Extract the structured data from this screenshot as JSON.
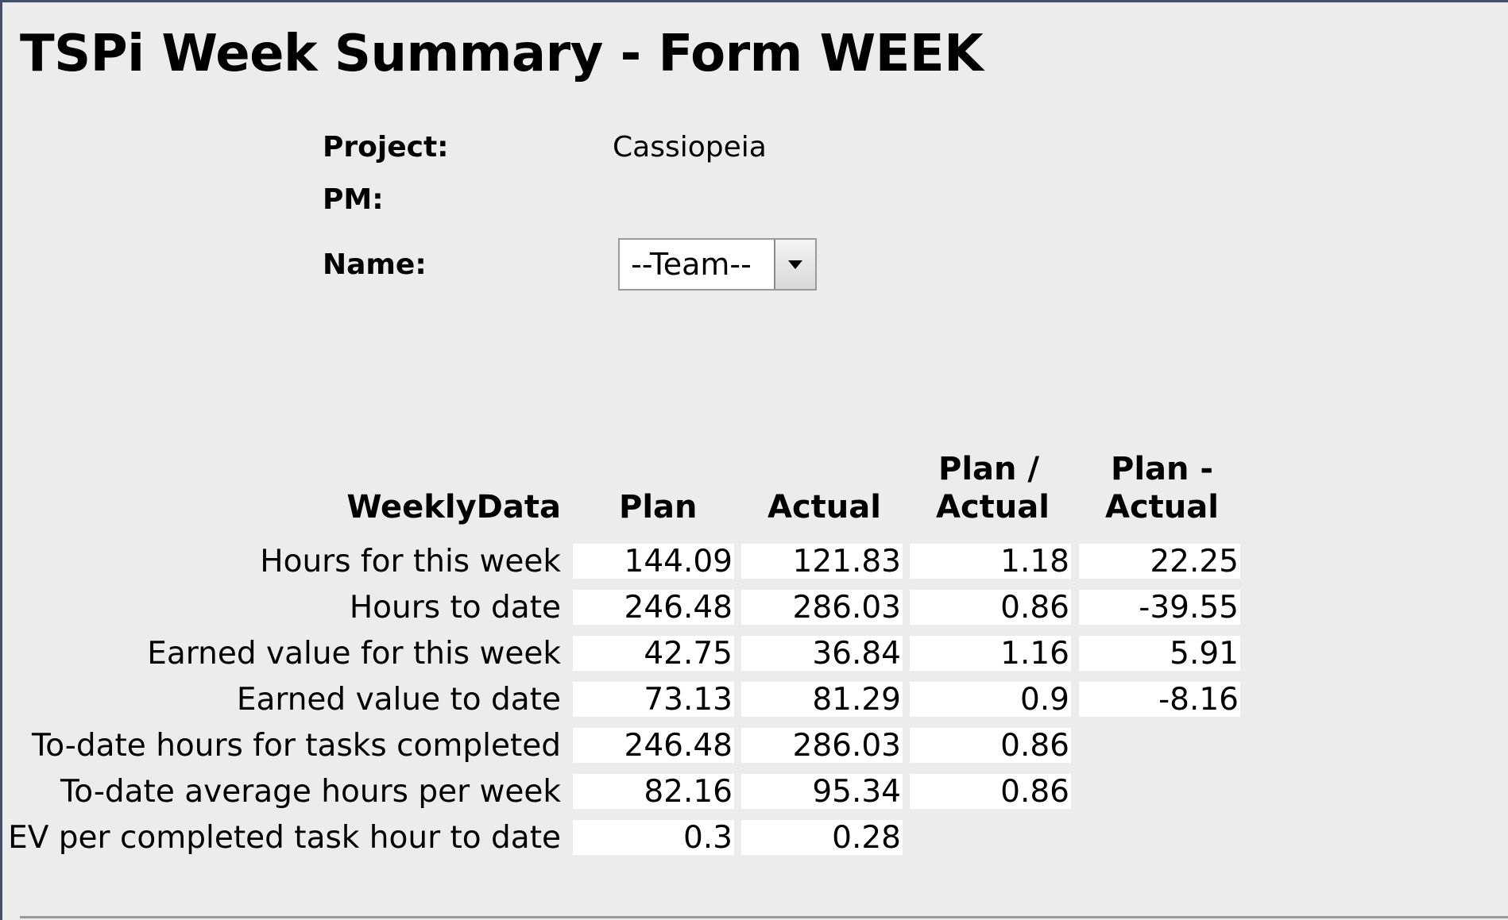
{
  "title": "TSPi Week Summary - Form WEEK",
  "info": {
    "project_label": "Project:",
    "project_value": "Cassiopeia",
    "pm_label": "PM:",
    "pm_value": "",
    "name_label": "Name:",
    "name_selected": "--Team--"
  },
  "table": {
    "headers": {
      "rows": "WeeklyData",
      "plan": "Plan",
      "actual": "Actual",
      "ratio_line1": "Plan /",
      "ratio_line2": "Actual",
      "diff_line1": "Plan -",
      "diff_line2": "Actual"
    },
    "rows": [
      {
        "label": "Hours for this week",
        "plan": "144.09",
        "actual": "121.83",
        "ratio": "1.18",
        "diff": "22.25"
      },
      {
        "label": "Hours to date",
        "plan": "246.48",
        "actual": "286.03",
        "ratio": "0.86",
        "diff": "-39.55"
      },
      {
        "label": "Earned value for this week",
        "plan": "42.75",
        "actual": "36.84",
        "ratio": "1.16",
        "diff": "5.91"
      },
      {
        "label": "Earned value to date",
        "plan": "73.13",
        "actual": "81.29",
        "ratio": "0.9",
        "diff": "-8.16"
      },
      {
        "label": "To-date hours for tasks completed",
        "plan": "246.48",
        "actual": "286.03",
        "ratio": "0.86",
        "diff": null
      },
      {
        "label": "To-date average hours per week",
        "plan": "82.16",
        "actual": "95.34",
        "ratio": "0.86",
        "diff": null
      },
      {
        "label": "EV per completed task hour to date",
        "plan": "0.3",
        "actual": "0.28",
        "ratio": null,
        "diff": null
      }
    ]
  }
}
